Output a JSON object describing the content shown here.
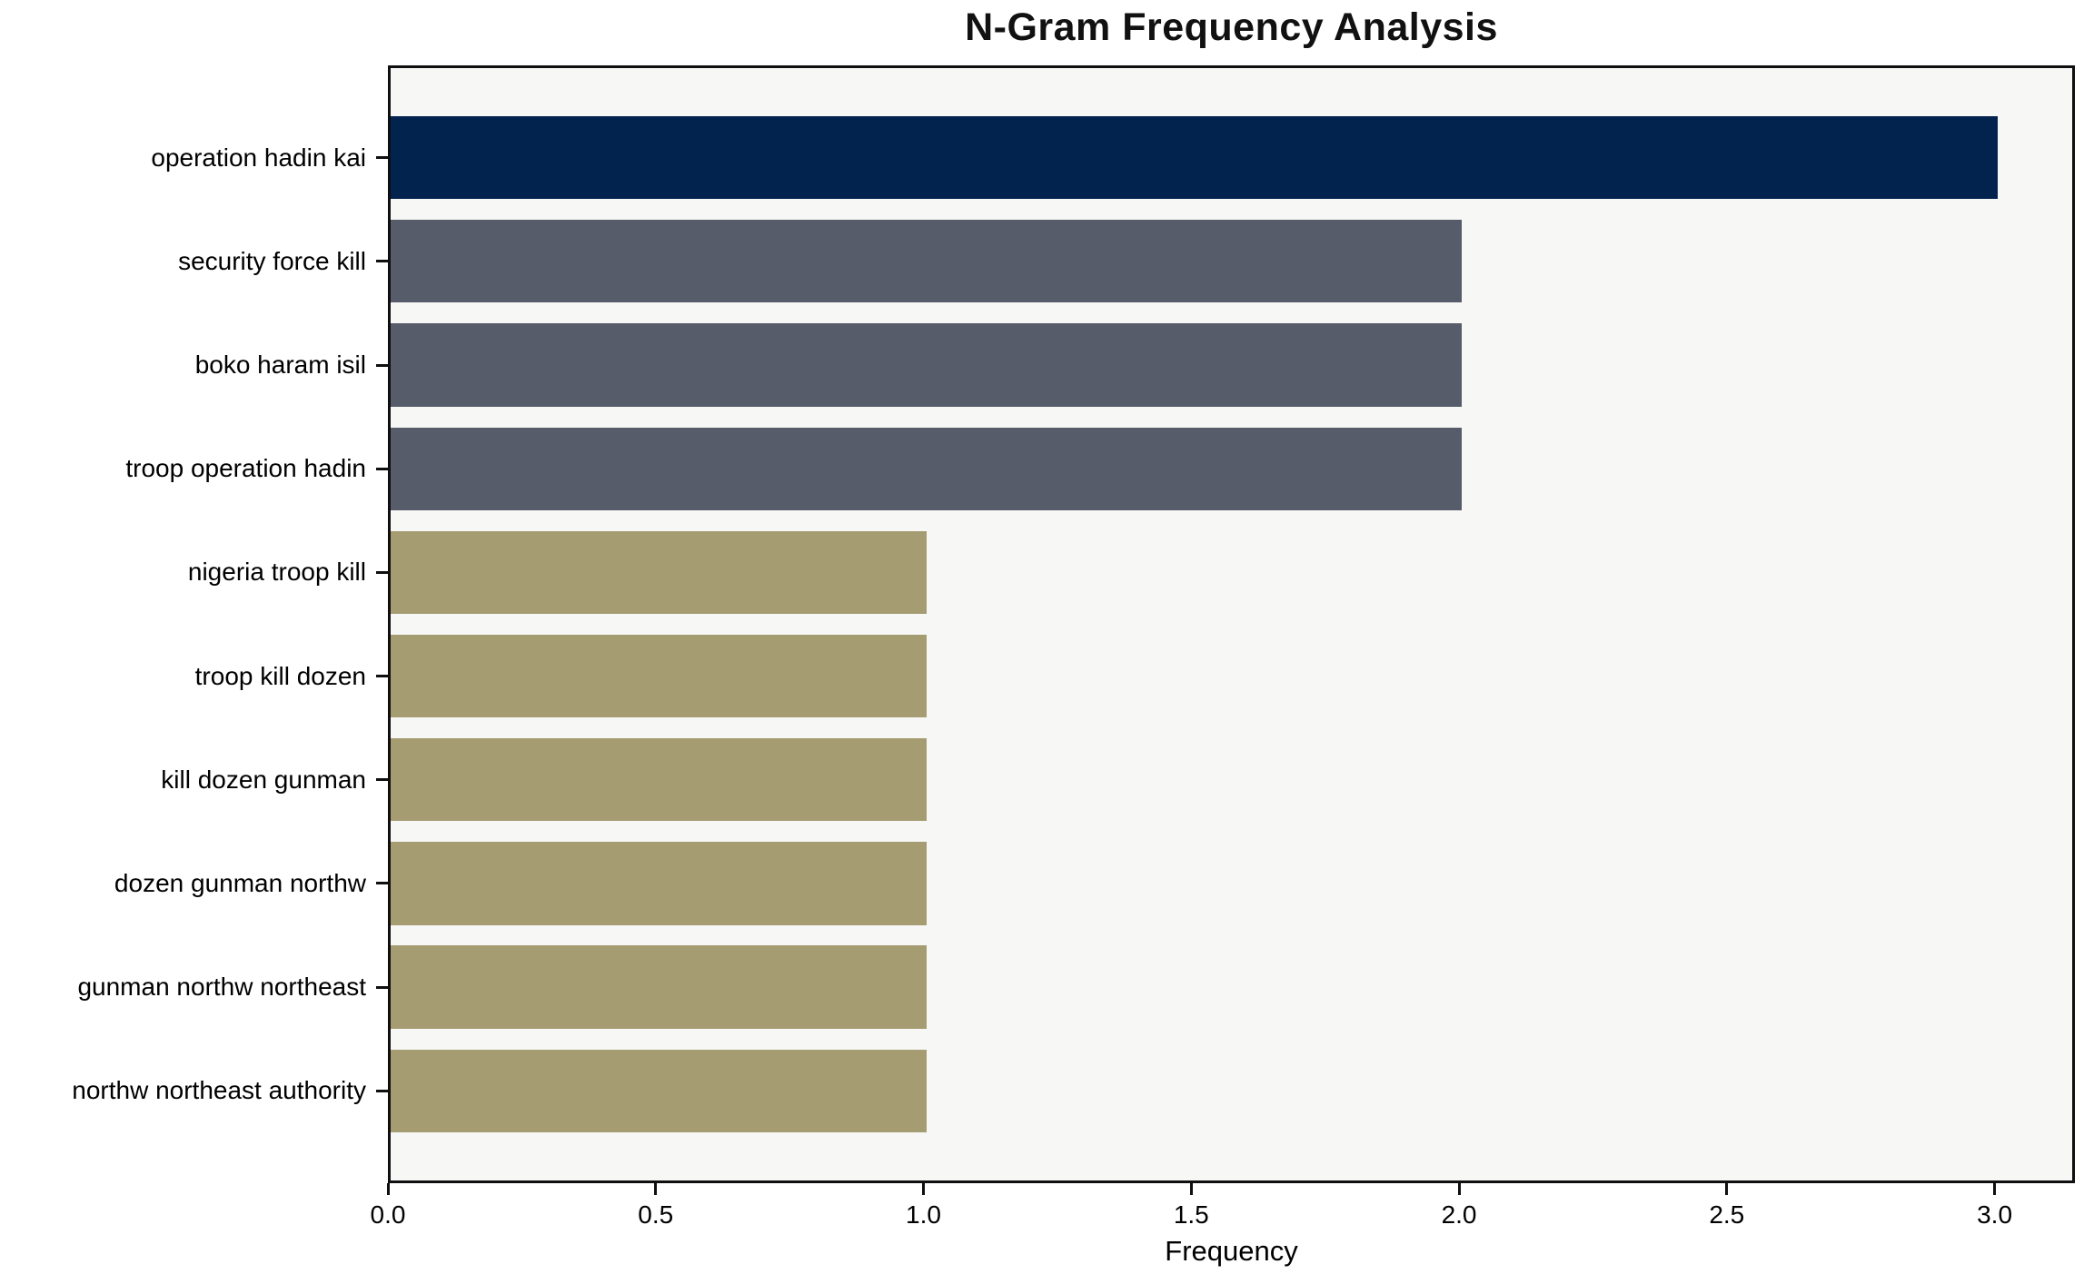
{
  "chart_data": {
    "type": "bar",
    "orientation": "horizontal",
    "title": "N-Gram Frequency Analysis",
    "xlabel": "Frequency",
    "ylabel": "",
    "categories": [
      "operation hadin kai",
      "security force kill",
      "boko haram isil",
      "troop operation hadin",
      "nigeria troop kill",
      "troop kill dozen",
      "kill dozen gunman",
      "dozen gunman northw",
      "gunman northw northeast",
      "northw northeast authority"
    ],
    "values": [
      3,
      2,
      2,
      2,
      1,
      1,
      1,
      1,
      1,
      1
    ],
    "bar_colors": [
      "#02234E",
      "#575C6B",
      "#575C6B",
      "#575C6B",
      "#A59C72",
      "#A59C72",
      "#A59C72",
      "#A59C72",
      "#A59C72",
      "#A59C72"
    ],
    "xticks": [
      0.0,
      0.5,
      1.0,
      1.5,
      2.0,
      2.5,
      3.0
    ],
    "xtick_labels": [
      "0.0",
      "0.5",
      "1.0",
      "1.5",
      "2.0",
      "2.5",
      "3.0"
    ],
    "xlim": [
      0,
      3.15
    ],
    "grid": false,
    "legend_position": "none",
    "plot_background": "#F7F7F6",
    "figure_background": "#FFFFFF",
    "axis_color": "#0F0F0F",
    "bar_height_fraction": 0.8
  }
}
